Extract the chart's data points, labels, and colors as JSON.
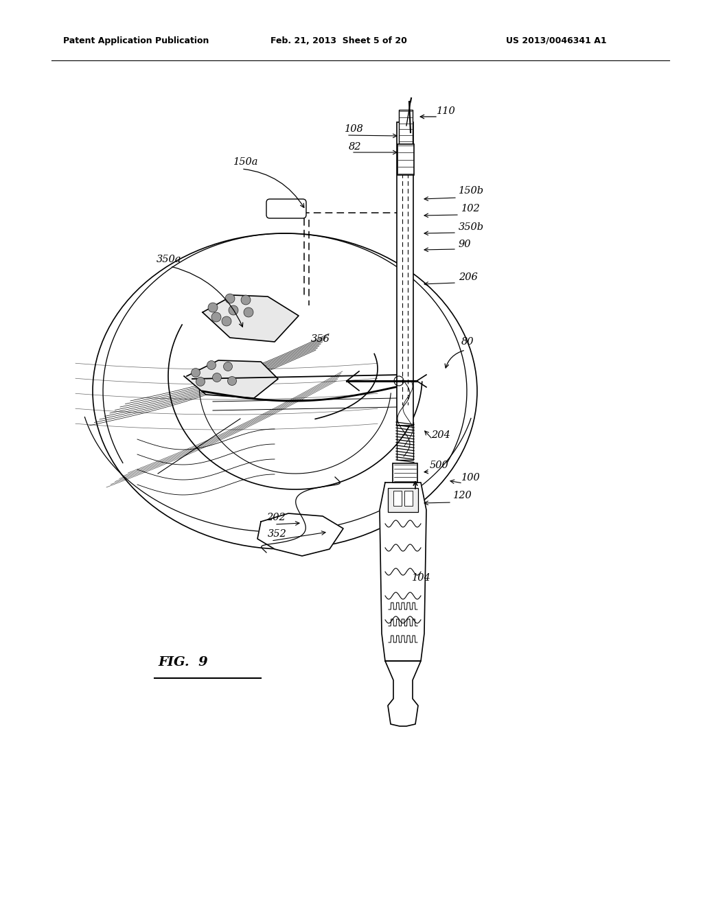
{
  "title_left": "Patent Application Publication",
  "title_mid": "Feb. 21, 2013  Sheet 5 of 20",
  "title_right": "US 2013/0046341 A1",
  "fig_label": "FIG.  9",
  "background_color": "#ffffff",
  "line_color": "#000000"
}
